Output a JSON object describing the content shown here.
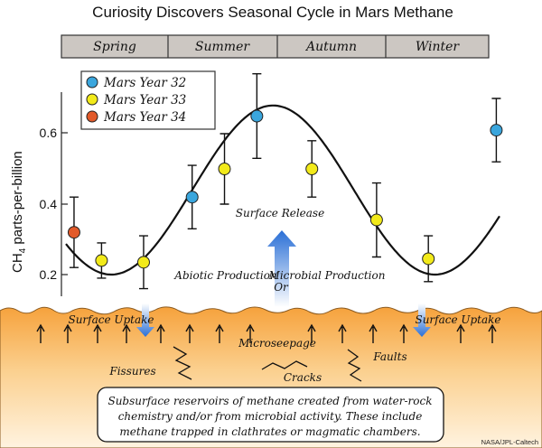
{
  "chart_data": {
    "type": "scatter",
    "title": "Curiosity Discovers Seasonal Cycle in Mars Methane",
    "ylabel_main": "CH",
    "ylabel_sub": "4",
    "ylabel_rest": " parts-per-billion",
    "yticks": [
      "0.2",
      "0.4",
      "0.6"
    ],
    "ylim": [
      0.15,
      0.73
    ],
    "seasons": [
      "Spring",
      "Summer",
      "Autumn",
      "Winter"
    ],
    "legend": [
      {
        "name": "Mars Year 32",
        "color": "#3aa6dd"
      },
      {
        "name": "Mars Year 33",
        "color": "#f2ea1a"
      },
      {
        "name": "Mars Year 34",
        "color": "#e25a2a"
      }
    ],
    "series": [
      {
        "name": "Mars Year 32",
        "color": "#3aa6dd",
        "points": [
          {
            "x": 0.39,
            "y": 0.42,
            "err": 0.09
          },
          {
            "x": 0.59,
            "y": 0.65,
            "err": 0.12
          },
          {
            "x": 1.33,
            "y": 0.61,
            "err": 0.09
          }
        ]
      },
      {
        "name": "Mars Year 33",
        "color": "#f2ea1a",
        "points": [
          {
            "x": 0.11,
            "y": 0.24,
            "err": 0.05
          },
          {
            "x": 0.24,
            "y": 0.235,
            "err": 0.075
          },
          {
            "x": 0.49,
            "y": 0.5,
            "err": 0.1
          },
          {
            "x": 0.76,
            "y": 0.5,
            "err": 0.08
          },
          {
            "x": 0.96,
            "y": 0.355,
            "err": 0.105
          },
          {
            "x": 1.12,
            "y": 0.245,
            "err": 0.065
          }
        ]
      },
      {
        "name": "Mars Year 34",
        "color": "#e25a2a",
        "points": [
          {
            "x": 0.025,
            "y": 0.32,
            "err": 0.1
          }
        ]
      }
    ],
    "curve": {
      "mean": 0.44,
      "amplitude": 0.24,
      "peak_phase": 0.64
    }
  },
  "labels": {
    "surface_release": "Surface Release",
    "abiotic": "Abiotic Production",
    "or": "Or",
    "microbial": "Microbial Production",
    "surface_uptake_left": "Surface Uptake",
    "surface_uptake_right": "Surface Uptake",
    "microseepage": "Microseepage",
    "fissures": "Fissures",
    "cracks": "Cracks",
    "faults": "Faults",
    "box_line1": "Subsurface reservoirs of methane created from water-rock",
    "box_line2": "chemistry and/or from microbial activity. These include",
    "box_line3": "methane trapped in clathrates or magmatic chambers.",
    "credit": "NASA/JPL-Caltech"
  }
}
